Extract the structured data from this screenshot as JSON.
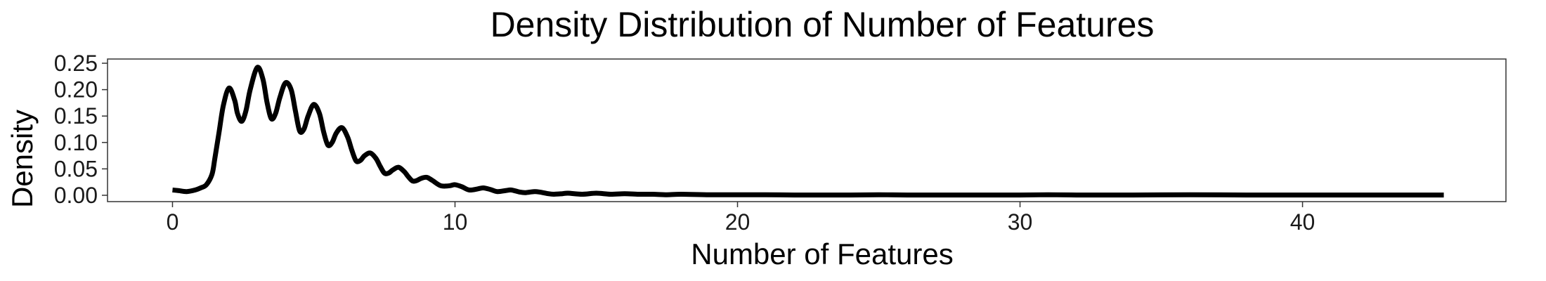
{
  "chart_data": {
    "type": "line",
    "title": "Density Distribution of Number of Features",
    "xlabel": "Number of Features",
    "ylabel": "Density",
    "xlim": [
      -2.3,
      47.2
    ],
    "ylim": [
      -0.012,
      0.258
    ],
    "x_ticks": [
      0,
      10,
      20,
      30,
      40
    ],
    "x_tick_labels": [
      "0",
      "10",
      "20",
      "30",
      "40"
    ],
    "y_ticks": [
      0.0,
      0.05,
      0.1,
      0.15,
      0.2,
      0.25
    ],
    "y_tick_labels": [
      "0.00",
      "0.05",
      "0.10",
      "0.15",
      "0.20",
      "0.25"
    ],
    "grid": false,
    "legend": "none",
    "line_color": "#000000",
    "series": [
      {
        "x": [
          0,
          0.2,
          0.5,
          0.8,
          1.0,
          1.2,
          1.4,
          1.5,
          1.65,
          1.8,
          2.0,
          2.2,
          2.3,
          2.45,
          2.6,
          2.75,
          3.0,
          3.2,
          3.35,
          3.5,
          3.65,
          3.8,
          4.0,
          4.2,
          4.35,
          4.5,
          4.65,
          4.8,
          5.0,
          5.2,
          5.35,
          5.5,
          5.65,
          5.8,
          6.0,
          6.2,
          6.35,
          6.5,
          6.65,
          6.8,
          7.0,
          7.2,
          7.35,
          7.5,
          7.65,
          7.8,
          8.0,
          8.2,
          8.35,
          8.5,
          8.65,
          8.8,
          9.0,
          9.2,
          9.5,
          9.8,
          10.0,
          10.25,
          10.5,
          10.8,
          11.0,
          11.25,
          11.5,
          11.8,
          12.0,
          12.3,
          12.5,
          12.8,
          13.0,
          13.3,
          13.5,
          13.8,
          14.0,
          14.5,
          15.0,
          15.5,
          16.0,
          16.5,
          17.0,
          17.5,
          18.0,
          19.0,
          20.0,
          21.0,
          22.0,
          23.0,
          24.0,
          25.0,
          26.0,
          28.0,
          30.0,
          31.0,
          32.0,
          34.0,
          36.0,
          38.0,
          40.0,
          42.0,
          44.0,
          45.0
        ],
        "y": [
          0.01,
          0.009,
          0.007,
          0.01,
          0.014,
          0.02,
          0.04,
          0.07,
          0.12,
          0.17,
          0.203,
          0.18,
          0.155,
          0.14,
          0.16,
          0.2,
          0.242,
          0.22,
          0.175,
          0.145,
          0.155,
          0.185,
          0.213,
          0.2,
          0.16,
          0.122,
          0.125,
          0.15,
          0.172,
          0.155,
          0.12,
          0.095,
          0.1,
          0.118,
          0.128,
          0.11,
          0.085,
          0.065,
          0.066,
          0.075,
          0.08,
          0.07,
          0.055,
          0.042,
          0.042,
          0.048,
          0.053,
          0.045,
          0.035,
          0.027,
          0.028,
          0.032,
          0.034,
          0.028,
          0.018,
          0.018,
          0.02,
          0.016,
          0.01,
          0.012,
          0.014,
          0.011,
          0.007,
          0.009,
          0.01,
          0.006,
          0.005,
          0.007,
          0.006,
          0.003,
          0.002,
          0.003,
          0.004,
          0.002,
          0.004,
          0.002,
          0.003,
          0.002,
          0.002,
          0.001,
          0.002,
          0.001,
          0.001,
          0.001,
          0.0005,
          0.0005,
          0.0005,
          0.001,
          0.0005,
          0.0005,
          0.0005,
          0.001,
          0.0005,
          0.0005,
          0.001,
          0.0005,
          0.0005,
          0.0005,
          0.0005,
          0.0005
        ]
      }
    ]
  }
}
